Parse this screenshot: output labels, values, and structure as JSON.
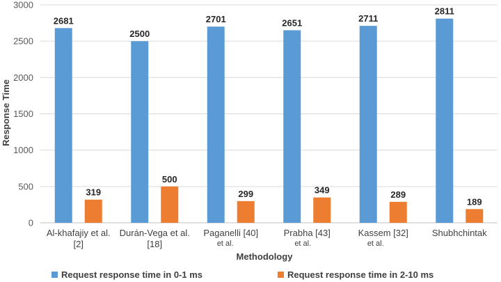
{
  "chart_data": {
    "type": "bar",
    "categories": [
      [
        "Al-khafajiy et al.",
        "[2]"
      ],
      [
        "Durán-Vega et al.",
        "[18]"
      ],
      [
        "Paganelli [40]",
        "et al."
      ],
      [
        "Prabha [43]",
        "et al."
      ],
      [
        "Kassem [32]",
        "et al."
      ],
      [
        "Shubhchintak"
      ]
    ],
    "series": [
      {
        "name": "Request response time in 0-1 ms",
        "color": "#5b9bd5",
        "values": [
          2681,
          2500,
          2701,
          2651,
          2711,
          2811
        ]
      },
      {
        "name": "Request response time in 2-10 ms",
        "color": "#ed7d31",
        "values": [
          319,
          500,
          299,
          349,
          289,
          189
        ]
      }
    ],
    "xlabel": "Methodology",
    "ylabel": "Response Time",
    "ylim": [
      0,
      3000
    ],
    "yticks": [
      0,
      500,
      1000,
      1500,
      2000,
      2500,
      3000
    ],
    "grid": true,
    "legend": "bottom"
  }
}
